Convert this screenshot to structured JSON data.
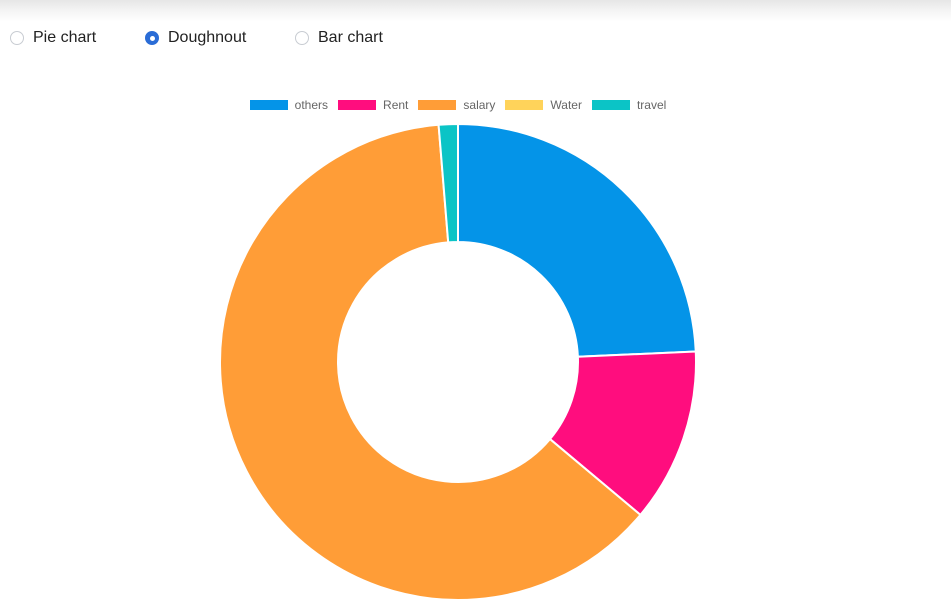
{
  "chart_type_selector": {
    "options": [
      {
        "label": "Pie chart",
        "checked": false
      },
      {
        "label": "Doughnout",
        "checked": true
      },
      {
        "label": "Bar chart",
        "checked": false
      }
    ]
  },
  "colors": {
    "others": "#0494e8",
    "Rent": "#ff0d7e",
    "salary": "#ff9d37",
    "Water": "#ffd35a",
    "travel": "#0bc4c6"
  },
  "chart_data": {
    "type": "doughnut",
    "categories": [
      "others",
      "Rent",
      "salary",
      "Water",
      "travel"
    ],
    "values": [
      24.3,
      11.8,
      62.6,
      0,
      1.3
    ],
    "legend_position": "top"
  }
}
